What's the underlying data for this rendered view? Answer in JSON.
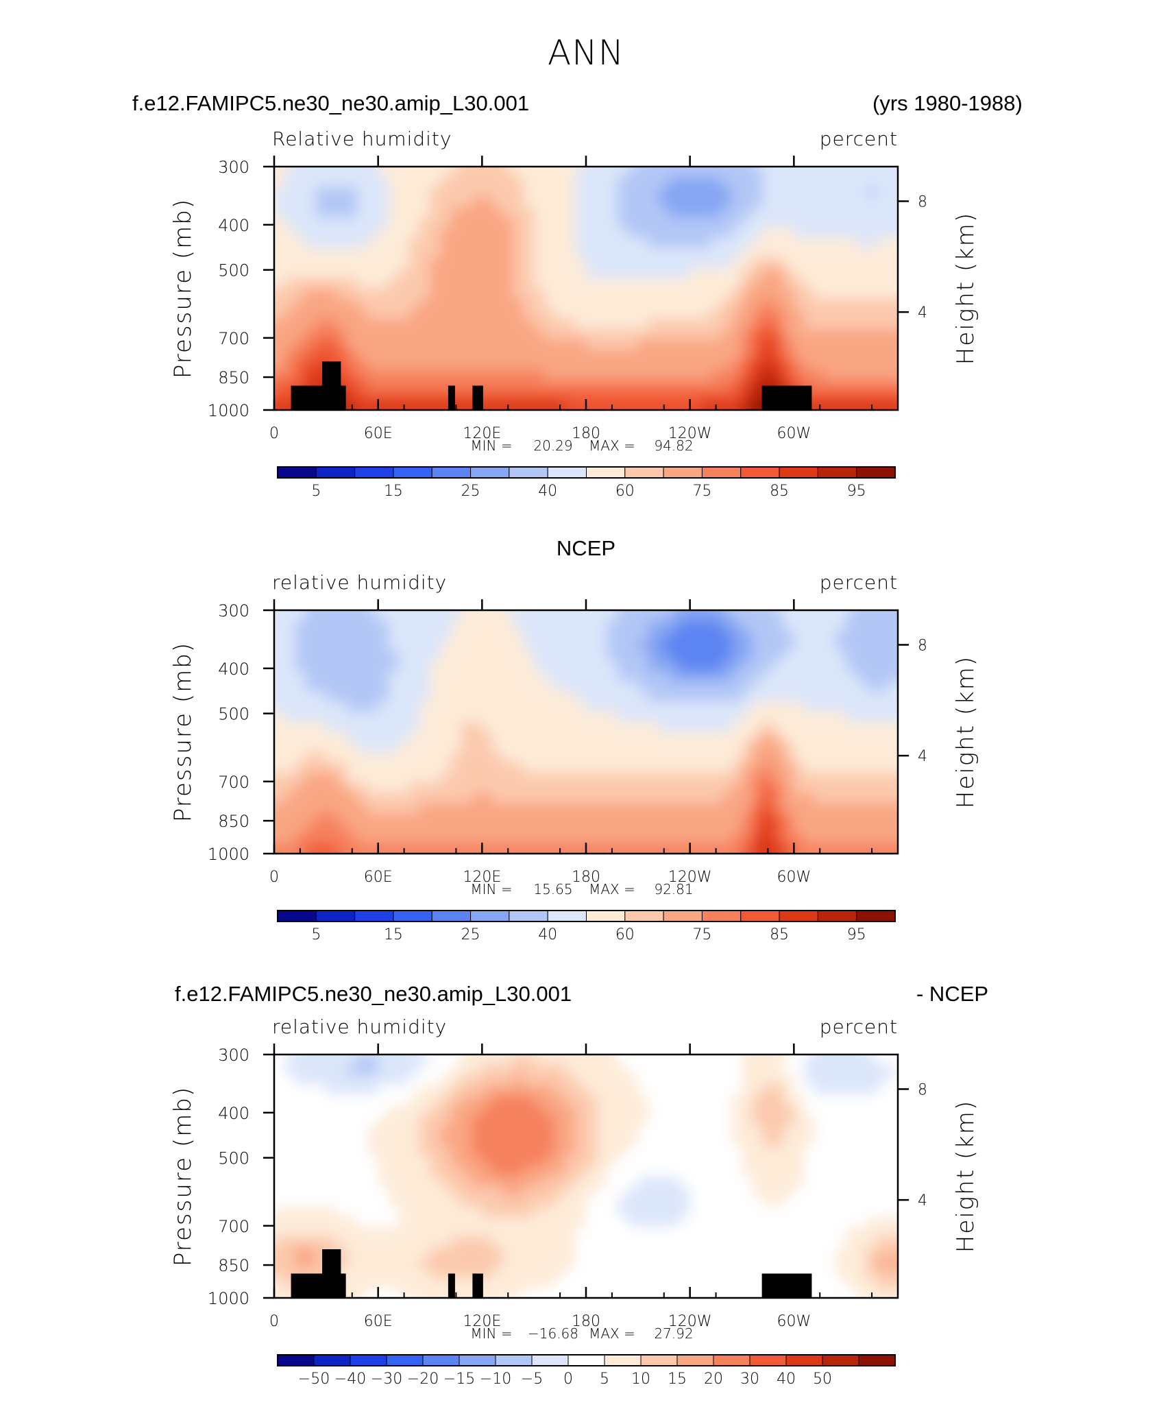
{
  "title": "ANN",
  "colors": {
    "rh_palette": [
      "#08088c",
      "#0c24c4",
      "#1e40e6",
      "#3562f0",
      "#5b84f2",
      "#86a6f3",
      "#b2c7f6",
      "#dbe6fa",
      "#fdebd8",
      "#fcc9ad",
      "#f9a683",
      "#f6815d",
      "#f15a36",
      "#dc3916",
      "#b82408",
      "#8c1204"
    ],
    "diff_palette": [
      "#08088c",
      "#0c24c4",
      "#1e40e6",
      "#3562f0",
      "#5b84f2",
      "#86a6f3",
      "#b2c7f6",
      "#dbe6fa",
      "#ffffff",
      "#fdebd8",
      "#fcc9ad",
      "#f9a683",
      "#f6815d",
      "#f15a36",
      "#dc3916",
      "#b82408",
      "#8c1204"
    ],
    "topography": "#000000"
  },
  "chart_data": [
    {
      "id": "model",
      "type": "heatmap",
      "case_name": "f.e12.FAMIPC5.ne30_ne30.amip_L30.001",
      "years": "(yrs 1980-1988)",
      "variable": "Relative humidity",
      "units": "percent",
      "ylabel": "Pressure (mb)",
      "ylabel_right": "Height (km)",
      "x_ticklabels": [
        "0",
        "60E",
        "120E",
        "180",
        "120W",
        "60W"
      ],
      "y_ticklabels": [
        "300",
        "400",
        "500",
        "700",
        "850",
        "1000"
      ],
      "y_right_ticklabels": [
        "8",
        "4"
      ],
      "min_label": "MIN =",
      "min_value": "20.29",
      "max_label": "MAX =",
      "max_value": "94.82",
      "colorbar_labels": [
        "5",
        "15",
        "25",
        "40",
        "60",
        "75",
        "85",
        "95"
      ],
      "has_topography": true
    },
    {
      "id": "obs",
      "type": "heatmap",
      "case_name": "NCEP",
      "variable": "relative humidity",
      "units": "percent",
      "ylabel": "Pressure (mb)",
      "ylabel_right": "Height (km)",
      "x_ticklabels": [
        "0",
        "60E",
        "120E",
        "180",
        "120W",
        "60W"
      ],
      "y_ticklabels": [
        "300",
        "400",
        "500",
        "700",
        "850",
        "1000"
      ],
      "y_right_ticklabels": [
        "8",
        "4"
      ],
      "min_label": "MIN =",
      "min_value": "15.65",
      "max_label": "MAX =",
      "max_value": "92.81",
      "colorbar_labels": [
        "5",
        "15",
        "25",
        "40",
        "60",
        "75",
        "85",
        "95"
      ],
      "has_topography": false
    },
    {
      "id": "diff",
      "type": "heatmap",
      "case_name": "f.e12.FAMIPC5.ne30_ne30.amip_L30.001",
      "case_suffix": "- NCEP",
      "variable": "relative humidity",
      "units": "percent",
      "ylabel": "Pressure (mb)",
      "ylabel_right": "Height (km)",
      "x_ticklabels": [
        "0",
        "60E",
        "120E",
        "180",
        "120W",
        "60W"
      ],
      "y_ticklabels": [
        "300",
        "400",
        "500",
        "700",
        "850",
        "1000"
      ],
      "y_right_ticklabels": [
        "8",
        "4"
      ],
      "min_label": "MIN =",
      "min_value": "−16.68",
      "max_label": "MAX =",
      "max_value": "27.92",
      "colorbar_labels": [
        "−50",
        "−40",
        "−30",
        "−20",
        "−15",
        "−10",
        "−5",
        "0",
        "5",
        "10",
        "15",
        "20",
        "30",
        "40",
        "50"
      ],
      "has_topography": true
    }
  ]
}
